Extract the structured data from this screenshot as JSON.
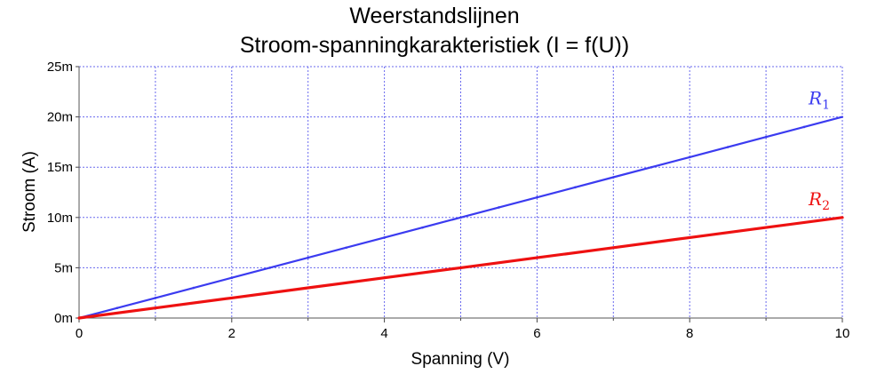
{
  "chart_data": {
    "type": "line",
    "title": "Weerstandslijnen",
    "subtitle": "Stroom-spanningkarakteristiek  (I = f(U))",
    "xlabel": "Spanning (V)",
    "ylabel": "Stroom (A)",
    "xlim": [
      0,
      10
    ],
    "ylim": [
      0,
      0.025
    ],
    "x_ticks": [
      "0",
      "2",
      "4",
      "6",
      "8",
      "10"
    ],
    "y_ticks": [
      "0m",
      "5m",
      "10m",
      "15m",
      "20m",
      "25m"
    ],
    "grid": true,
    "series": [
      {
        "name": "R",
        "subscript": "1",
        "color": "#3b3bf0",
        "x": [
          0,
          1,
          2,
          3,
          4,
          5,
          6,
          7,
          8,
          9,
          10
        ],
        "y": [
          0,
          0.002,
          0.004,
          0.006,
          0.008,
          0.01,
          0.012,
          0.014,
          0.016,
          0.018,
          0.02
        ]
      },
      {
        "name": "R",
        "subscript": "2",
        "color": "#ee1111",
        "x": [
          0,
          1,
          2,
          3,
          4,
          5,
          6,
          7,
          8,
          9,
          10
        ],
        "y": [
          0,
          0.001,
          0.002,
          0.003,
          0.004,
          0.005,
          0.006,
          0.007,
          0.008,
          0.009,
          0.01
        ]
      }
    ]
  }
}
